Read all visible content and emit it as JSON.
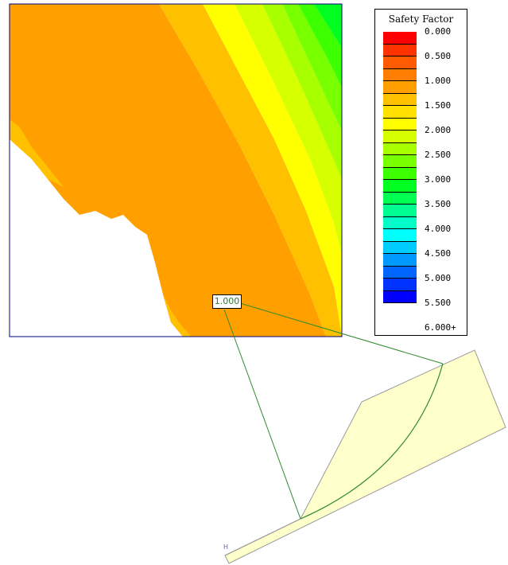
{
  "legend": {
    "title": "Safety Factor",
    "swatches": [
      "#ff0000",
      "#ff3300",
      "#ff5a00",
      "#ff7d00",
      "#ffa000",
      "#ffc000",
      "#ffe000",
      "#ffff00",
      "#d6ff00",
      "#a8ff00",
      "#78ff00",
      "#3cff00",
      "#00ff20",
      "#00ff50",
      "#00ff90",
      "#00ffc8",
      "#00ffff",
      "#00ccff",
      "#0099ff",
      "#0066ff",
      "#0033ff",
      "#0000ff"
    ],
    "ticks": [
      "0.000",
      "0.500",
      "1.000",
      "1.500",
      "2.000",
      "2.500",
      "3.000",
      "3.500",
      "4.000",
      "4.500",
      "5.000",
      "5.500",
      "6.000+"
    ]
  },
  "contour": {
    "colors": {
      "frame": "#000080",
      "orange": "#ffa000",
      "light_orange": "#ffc000",
      "yellow": "#ffff00",
      "yellow_green": "#d6ff00",
      "green": "#3cff00"
    }
  },
  "critical_surface": {
    "factor_label": "1.000",
    "label_color": "#2e7d2e",
    "line_color": "#2e8b2e"
  },
  "slope": {
    "fill": "#ffffcc",
    "outline": "#999999",
    "axis_marker": "H"
  }
}
